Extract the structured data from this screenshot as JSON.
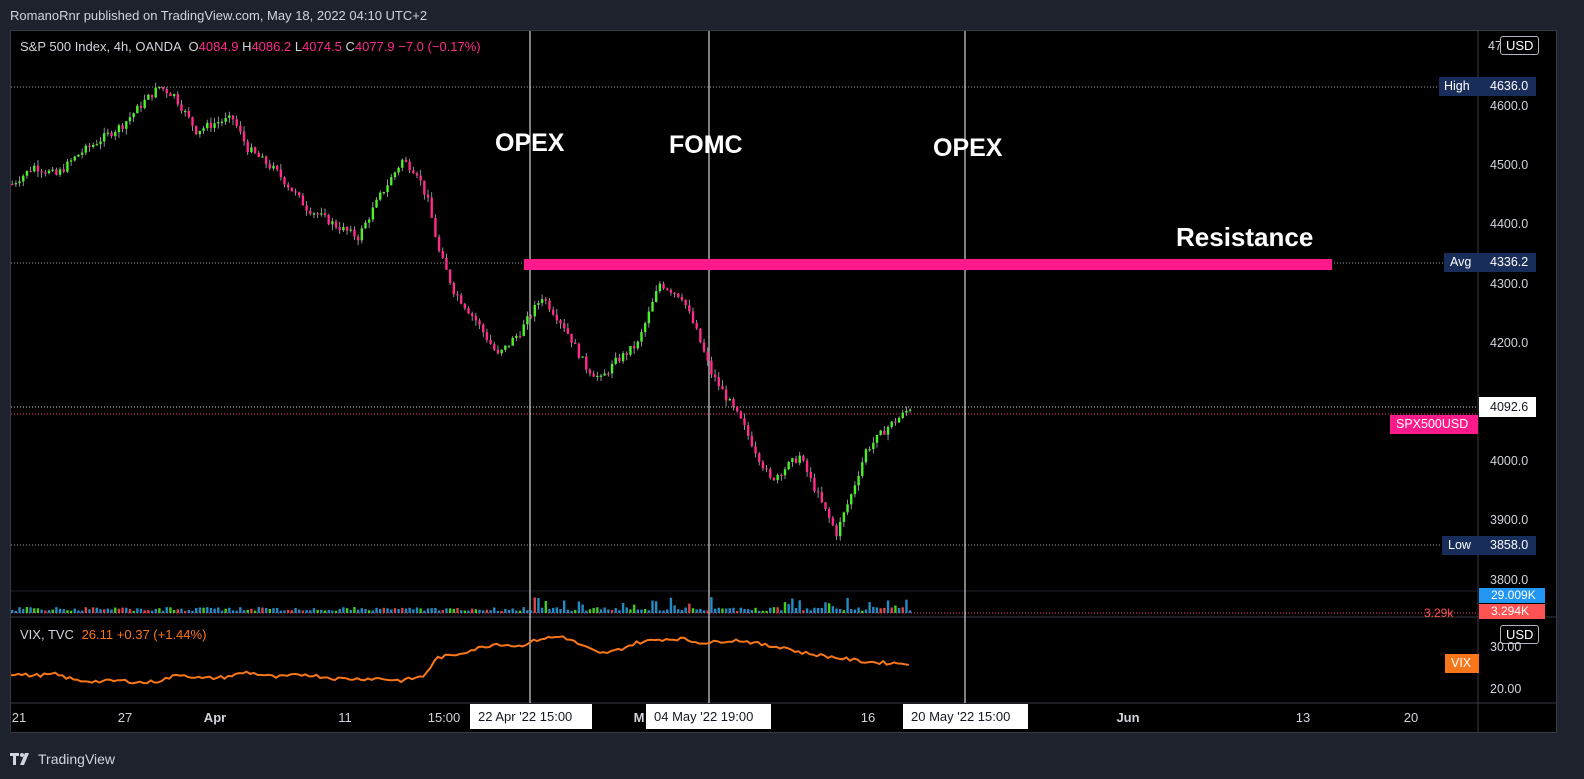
{
  "header": {
    "publisher_line": "RomanoRnr published on TradingView.com, May 18, 2022 04:10 UTC+2"
  },
  "main_legend": {
    "symbol": "S&P 500 Index, 4h, OANDA",
    "o_label": "O",
    "o_value": "4084.9",
    "h_label": "H",
    "h_value": "4086.2",
    "l_label": "L",
    "l_value": "4074.5",
    "c_label": "C",
    "c_value": "4077.9",
    "change": "−7.0 (−0.17%)"
  },
  "vix_legend": {
    "symbol": "VIX, TVC",
    "value": "26.11",
    "change": "+0.37 (+1.44%)"
  },
  "annotations": {
    "opex_1": "OPEX",
    "fomc": "FOMC",
    "opex_2": "OPEX",
    "resistance": "Resistance"
  },
  "price_axis": {
    "currency": "USD",
    "top_partial": "47",
    "ticks": [
      "4600.0",
      "4500.0",
      "4400.0",
      "4300.0",
      "4200.0",
      "4100.0",
      "4000.0",
      "3900.0",
      "3800.0"
    ],
    "high_label": "High",
    "high_value": "4636.0",
    "avg_label": "Avg",
    "avg_value": "4336.2",
    "low_label": "Low",
    "low_value": "3858.0",
    "last_price": "4092.6",
    "symbol_tag": "SPX500USD"
  },
  "volume": {
    "value_1": "29.009K",
    "value_2": "3.294K",
    "partial": "3.29k"
  },
  "vix_axis": {
    "currency": "USD",
    "ticks": [
      "30.00",
      "20.00"
    ],
    "tag": "VIX"
  },
  "time_axis": {
    "labels": [
      {
        "text": "21"
      },
      {
        "text": "27"
      },
      {
        "text": "Apr",
        "bold": true
      },
      {
        "text": "11"
      },
      {
        "text": "15:00"
      },
      {
        "text": "M",
        "bold": true
      },
      {
        "text": "16"
      },
      {
        "text": "Jun",
        "bold": true
      },
      {
        "text": "13"
      },
      {
        "text": "20"
      }
    ],
    "boxes": [
      "22 Apr '22   15:00",
      "04 May '22   19:00",
      "20 May '22   15:00"
    ]
  },
  "footer": {
    "brand": "TradingView"
  },
  "chart_data": {
    "type": "candlestick",
    "symbol": "S&P 500 Index, 4h, OANDA",
    "price_range": [
      3780,
      4720
    ],
    "levels": {
      "high": 4636.0,
      "avg": 4336.2,
      "low": 3858.0,
      "resistance": 4336.2,
      "last": 4092.6
    },
    "colors": {
      "up": "#4cf02a",
      "down": "#ff2a8a",
      "wick": "#b2b5be",
      "resistance": "#ff1a8c",
      "vix_line": "#f7761a",
      "volume": "#29a3e8"
    },
    "price_path": [
      [
        0,
        4470
      ],
      [
        6,
        4500
      ],
      [
        12,
        4485
      ],
      [
        18,
        4520
      ],
      [
        24,
        4545
      ],
      [
        30,
        4570
      ],
      [
        36,
        4610
      ],
      [
        40,
        4634
      ],
      [
        44,
        4620
      ],
      [
        50,
        4560
      ],
      [
        56,
        4575
      ],
      [
        60,
        4580
      ],
      [
        64,
        4530
      ],
      [
        72,
        4490
      ],
      [
        80,
        4430
      ],
      [
        88,
        4400
      ],
      [
        94,
        4380
      ],
      [
        100,
        4450
      ],
      [
        106,
        4510
      ],
      [
        110,
        4490
      ],
      [
        113,
        4440
      ],
      [
        116,
        4355
      ],
      [
        120,
        4290
      ],
      [
        126,
        4240
      ],
      [
        132,
        4180
      ],
      [
        138,
        4220
      ],
      [
        144,
        4280
      ],
      [
        150,
        4230
      ],
      [
        156,
        4160
      ],
      [
        160,
        4140
      ],
      [
        164,
        4170
      ],
      [
        170,
        4200
      ],
      [
        176,
        4302
      ],
      [
        182,
        4280
      ],
      [
        186,
        4220
      ],
      [
        190,
        4150
      ],
      [
        194,
        4110
      ],
      [
        198,
        4070
      ],
      [
        202,
        4020
      ],
      [
        206,
        3970
      ],
      [
        210,
        3990
      ],
      [
        214,
        4010
      ],
      [
        220,
        3930
      ],
      [
        224,
        3880
      ],
      [
        228,
        3945
      ],
      [
        232,
        4020
      ],
      [
        238,
        4060
      ],
      [
        242,
        4080
      ],
      [
        244,
        4092.6
      ]
    ],
    "vix_path": [
      [
        0,
        23.6
      ],
      [
        6,
        23.2
      ],
      [
        12,
        23.5
      ],
      [
        18,
        22.0
      ],
      [
        24,
        21.8
      ],
      [
        30,
        22.0
      ],
      [
        36,
        21.5
      ],
      [
        40,
        21.9
      ],
      [
        46,
        23.5
      ],
      [
        52,
        22.5
      ],
      [
        58,
        22.8
      ],
      [
        64,
        24.0
      ],
      [
        72,
        22.8
      ],
      [
        80,
        23.5
      ],
      [
        88,
        22.5
      ],
      [
        94,
        22.4
      ],
      [
        100,
        22.5
      ],
      [
        106,
        22.0
      ],
      [
        112,
        23.0
      ],
      [
        116,
        27.5
      ],
      [
        120,
        28.0
      ],
      [
        126,
        29.5
      ],
      [
        132,
        30.8
      ],
      [
        138,
        30.2
      ],
      [
        144,
        32.0
      ],
      [
        150,
        32.5
      ],
      [
        156,
        30.0
      ],
      [
        160,
        28.4
      ],
      [
        164,
        29.0
      ],
      [
        170,
        31.0
      ],
      [
        176,
        31.8
      ],
      [
        182,
        32.0
      ],
      [
        186,
        31.2
      ],
      [
        190,
        31.0
      ],
      [
        194,
        31.5
      ],
      [
        198,
        31.6
      ],
      [
        202,
        31.0
      ],
      [
        206,
        30.2
      ],
      [
        210,
        30.0
      ],
      [
        214,
        28.8
      ],
      [
        220,
        28.0
      ],
      [
        224,
        27.5
      ],
      [
        228,
        27.0
      ],
      [
        232,
        26.5
      ],
      [
        238,
        26.2
      ],
      [
        244,
        26.11
      ]
    ],
    "vix_range": [
      17,
      35
    ]
  }
}
